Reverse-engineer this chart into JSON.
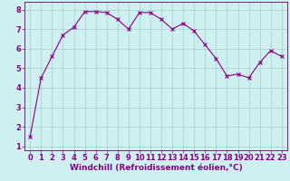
{
  "x": [
    0,
    1,
    2,
    3,
    4,
    5,
    6,
    7,
    8,
    9,
    10,
    11,
    12,
    13,
    14,
    15,
    16,
    17,
    18,
    19,
    20,
    21,
    22,
    23
  ],
  "y": [
    1.5,
    4.5,
    5.6,
    6.7,
    7.1,
    7.9,
    7.9,
    7.85,
    7.5,
    7.0,
    7.85,
    7.85,
    7.5,
    7.0,
    7.3,
    6.9,
    6.2,
    5.5,
    4.6,
    4.7,
    4.5,
    5.3,
    5.9,
    5.6
  ],
  "line_color": "#880088",
  "marker": "x",
  "bg_color": "#cff0f0",
  "grid_color": "#aacccc",
  "xlabel": "Windchill (Refroidissement éolien,°C)",
  "xlabel_fontsize": 6.5,
  "tick_fontsize": 6,
  "ylim": [
    0.8,
    8.4
  ],
  "xlim": [
    -0.5,
    23.5
  ],
  "yticks": [
    1,
    2,
    3,
    4,
    5,
    6,
    7,
    8
  ],
  "xticks": [
    0,
    1,
    2,
    3,
    4,
    5,
    6,
    7,
    8,
    9,
    10,
    11,
    12,
    13,
    14,
    15,
    16,
    17,
    18,
    19,
    20,
    21,
    22,
    23
  ],
  "line_color_hex": "#880088",
  "spine_color": "#660066",
  "label_color": "#880088"
}
